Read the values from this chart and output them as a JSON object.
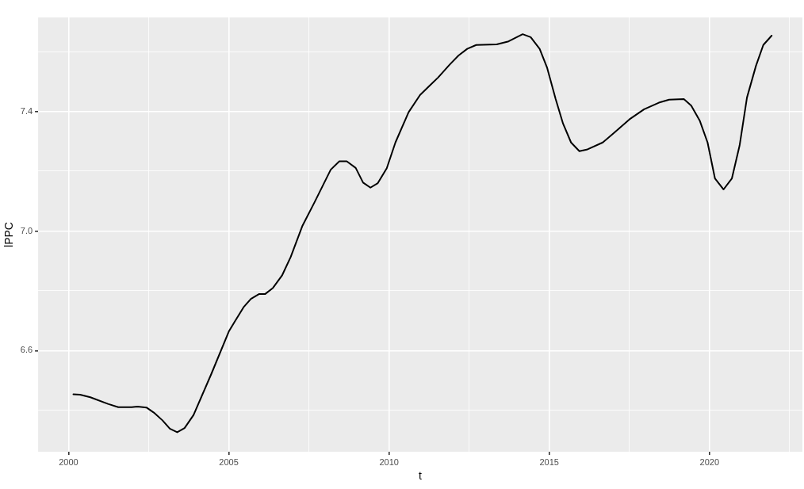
{
  "chart_data": {
    "type": "line",
    "xlabel": "t",
    "ylabel": "lPPC",
    "xlim": [
      1999.05,
      2022.9
    ],
    "ylim": [
      6.262,
      7.714
    ],
    "xticks": [
      2000,
      {
        "value": 2002.5,
        "label": null
      },
      2005,
      {
        "value": 2007.5,
        "label": null
      },
      2010,
      {
        "value": 2012.5,
        "label": null
      },
      2015,
      {
        "value": 2017.5,
        "label": null
      },
      2020,
      {
        "value": 2022.5,
        "label": null
      }
    ],
    "yticks": [
      {
        "value": 6.4,
        "label": null
      },
      6.6,
      {
        "value": 6.8,
        "label": null
      },
      {
        "value": 7.0,
        "label": "7.0"
      },
      {
        "value": 7.2,
        "label": null
      },
      7.4,
      {
        "value": 7.6,
        "label": null
      }
    ],
    "grid": true,
    "legend": false,
    "marker": "none",
    "line_style": "solid",
    "series": [
      {
        "color": "#000000",
        "x": [
          2000.15,
          2000.36,
          2000.68,
          2001.23,
          2001.55,
          2001.97,
          2002.15,
          2002.43,
          2002.66,
          2002.93,
          2003.16,
          2003.39,
          2003.62,
          2003.9,
          2004.45,
          2005.0,
          2005.19,
          2005.46,
          2005.69,
          2005.94,
          2006.13,
          2006.38,
          2006.66,
          2006.93,
          2007.3,
          2007.67,
          2008.18,
          2008.45,
          2008.68,
          2008.96,
          2009.19,
          2009.42,
          2009.65,
          2009.93,
          2010.2,
          2010.61,
          2010.97,
          2011.25,
          2011.53,
          2011.89,
          2012.17,
          2012.44,
          2012.72,
          2013.36,
          2013.73,
          2014.17,
          2014.42,
          2014.7,
          2014.93,
          2015.2,
          2015.43,
          2015.68,
          2015.94,
          2016.17,
          2016.67,
          2017.04,
          2017.5,
          2017.96,
          2018.42,
          2018.74,
          2019.2,
          2019.43,
          2019.7,
          2019.94,
          2020.17,
          2020.44,
          2020.7,
          2020.94,
          2021.17,
          2021.45,
          2021.68,
          2021.94
        ],
        "values": [
          6.454,
          6.453,
          6.444,
          6.422,
          6.411,
          6.411,
          6.413,
          6.41,
          6.393,
          6.367,
          6.339,
          6.327,
          6.341,
          6.385,
          6.521,
          6.664,
          6.698,
          6.745,
          6.773,
          6.789,
          6.789,
          6.81,
          6.851,
          6.913,
          7.018,
          7.095,
          7.205,
          7.233,
          7.233,
          7.211,
          7.162,
          7.145,
          7.16,
          7.21,
          7.296,
          7.397,
          7.455,
          7.484,
          7.513,
          7.556,
          7.587,
          7.609,
          7.622,
          7.624,
          7.634,
          7.658,
          7.648,
          7.609,
          7.547,
          7.441,
          7.359,
          7.296,
          7.267,
          7.272,
          7.296,
          7.33,
          7.373,
          7.407,
          7.429,
          7.439,
          7.441,
          7.419,
          7.368,
          7.296,
          7.176,
          7.139,
          7.176,
          7.286,
          7.446,
          7.552,
          7.622,
          7.653
        ]
      }
    ]
  }
}
